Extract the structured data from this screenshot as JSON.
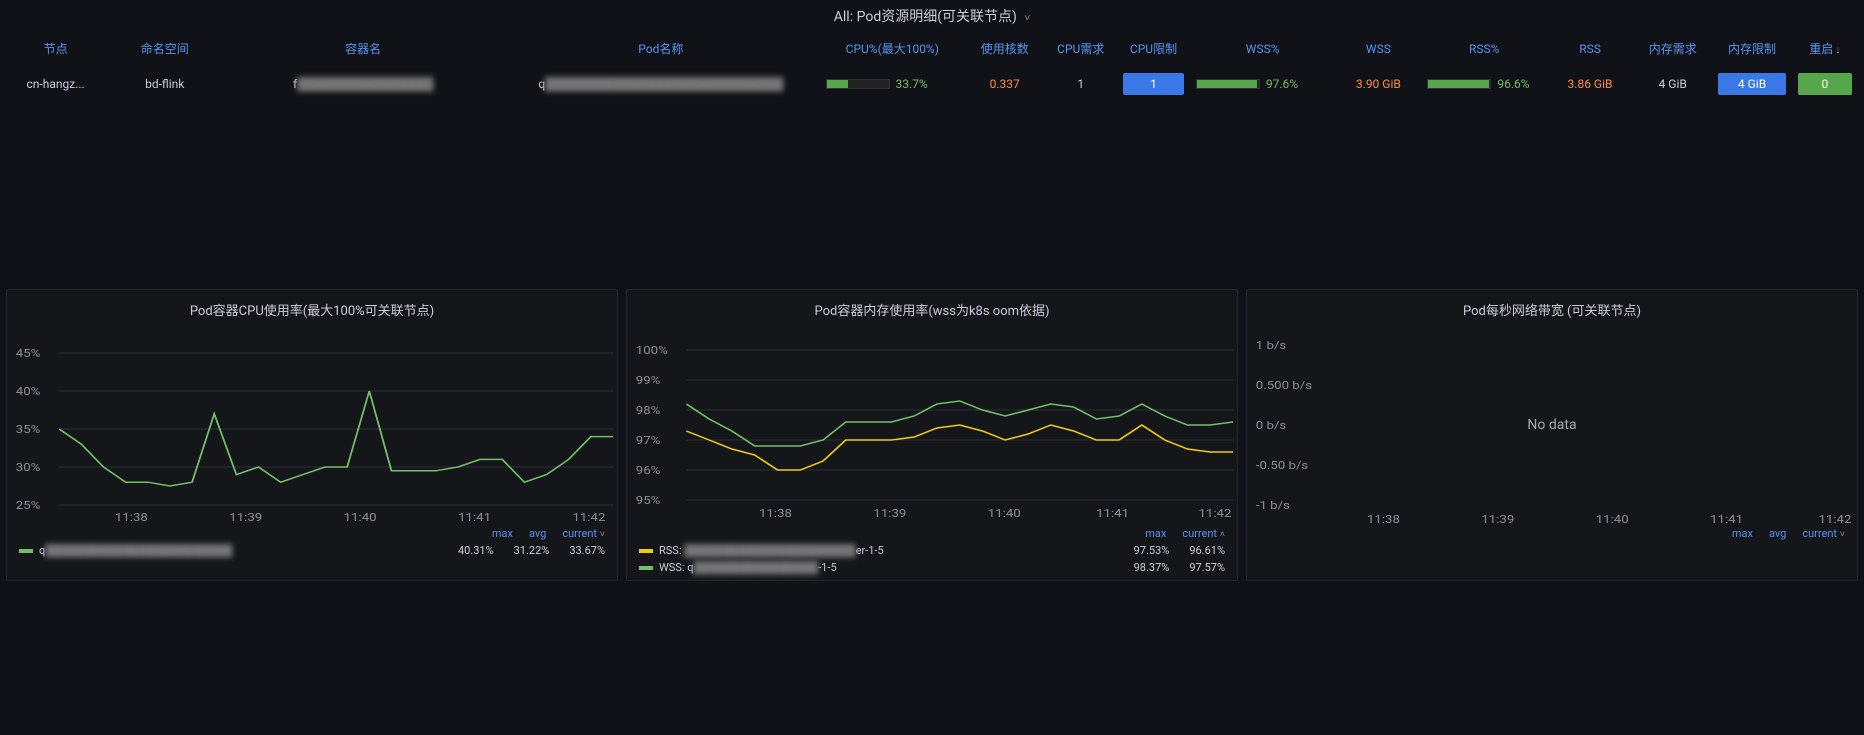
{
  "colors": {
    "background": "#111217",
    "panel_bg": "#141619",
    "panel_border": "#23252d",
    "text": "#ccccdc",
    "text_dim": "#8e8e9a",
    "link": "#5794f2",
    "series_green": "#73bf69",
    "series_yellow": "#f2cc0c",
    "orange": "#ff8c42",
    "chip_blue": "#3b78e7",
    "chip_green": "#56a64b",
    "grid": "#2c2f38"
  },
  "top": {
    "title_prefix": "All:",
    "title": "Pod资源明细(可关联节点)",
    "columns": [
      "节点",
      "命名空间",
      "容器名",
      "Pod名称",
      "CPU%(最大100%)",
      "使用核数",
      "CPU需求",
      "CPU限制",
      "WSS%",
      "WSS",
      "RSS%",
      "RSS",
      "内存需求",
      "内存限制",
      "重启"
    ],
    "row": {
      "node": "cn-hangz...",
      "namespace": "bd-flink",
      "container": "f",
      "pod": "q",
      "cpu_pct": "33.7%",
      "used_cores": "0.337",
      "cpu_req": "1",
      "cpu_lim": "1",
      "wss_pct": "97.6%",
      "wss": "3.90 GiB",
      "rss_pct": "96.6%",
      "rss": "3.86 GiB",
      "mem_req": "4 GiB",
      "mem_lim": "4 GiB",
      "restart": "0"
    }
  },
  "cpu_chart": {
    "title": "Pod容器CPU使用率(最大100%可关联节点)",
    "ylim": [
      25,
      45
    ],
    "yticks": [
      "25%",
      "30%",
      "35%",
      "40%",
      "45%"
    ],
    "xticks": [
      "11:38",
      "11:39",
      "11:40",
      "11:41",
      "11:42"
    ],
    "series": [
      {
        "name_prefix": "q",
        "color": "#73bf69",
        "values": [
          35,
          33,
          30,
          28,
          28,
          27.5,
          28,
          37,
          29,
          30,
          28,
          29,
          30,
          30,
          40,
          29.5,
          29.5,
          29.5,
          30,
          31,
          31,
          28,
          29,
          31,
          34,
          34
        ]
      }
    ],
    "legend_cols": [
      "max",
      "avg",
      "current"
    ],
    "legend_row": {
      "label": "q",
      "max": "40.31%",
      "avg": "31.22%",
      "current": "33.67%"
    }
  },
  "mem_chart": {
    "title": "Pod容器内存使用率(wss为k8s oom依据)",
    "ylim": [
      95,
      100
    ],
    "yticks": [
      "95%",
      "96%",
      "97%",
      "98%",
      "99%",
      "100%"
    ],
    "xticks": [
      "11:38",
      "11:39",
      "11:40",
      "11:41",
      "11:42"
    ],
    "series": [
      {
        "name_prefix": "RSS:",
        "label_suffix": "er-1-5",
        "color": "#f2cc0c",
        "values": [
          97.3,
          97.0,
          96.7,
          96.5,
          96.0,
          96.0,
          96.3,
          97.0,
          97.0,
          97.0,
          97.1,
          97.4,
          97.5,
          97.3,
          97.0,
          97.2,
          97.5,
          97.3,
          97.0,
          97.0,
          97.5,
          97.0,
          96.7,
          96.6,
          96.6
        ]
      },
      {
        "name_prefix": "WSS:",
        "label_prefix": "q",
        "label_suffix": "-1-5",
        "color": "#73bf69",
        "values": [
          98.2,
          97.7,
          97.3,
          96.8,
          96.8,
          96.8,
          97.0,
          97.6,
          97.6,
          97.6,
          97.8,
          98.2,
          98.3,
          98.0,
          97.8,
          98.0,
          98.2,
          98.1,
          97.7,
          97.8,
          98.2,
          97.8,
          97.5,
          97.5,
          97.6
        ]
      }
    ],
    "legend_cols": [
      "max",
      "current"
    ],
    "legend_rows": [
      {
        "label": "RSS:",
        "suffix": "er-1-5",
        "max": "97.53%",
        "current": "96.61%"
      },
      {
        "label": "WSS:",
        "prefix": "q",
        "suffix": "-1-5",
        "max": "98.37%",
        "current": "97.57%"
      }
    ]
  },
  "net_chart": {
    "title": "Pod每秒网络带宽 (可关联节点)",
    "ylim": [
      -1,
      1
    ],
    "yticks": [
      "-1 b/s",
      "-0.50 b/s",
      "0 b/s",
      "0.500 b/s",
      "1 b/s"
    ],
    "xticks": [
      "11:38",
      "11:39",
      "11:40",
      "11:41",
      "11:42"
    ],
    "no_data": "No data",
    "legend_cols": [
      "max",
      "avg",
      "current"
    ]
  }
}
